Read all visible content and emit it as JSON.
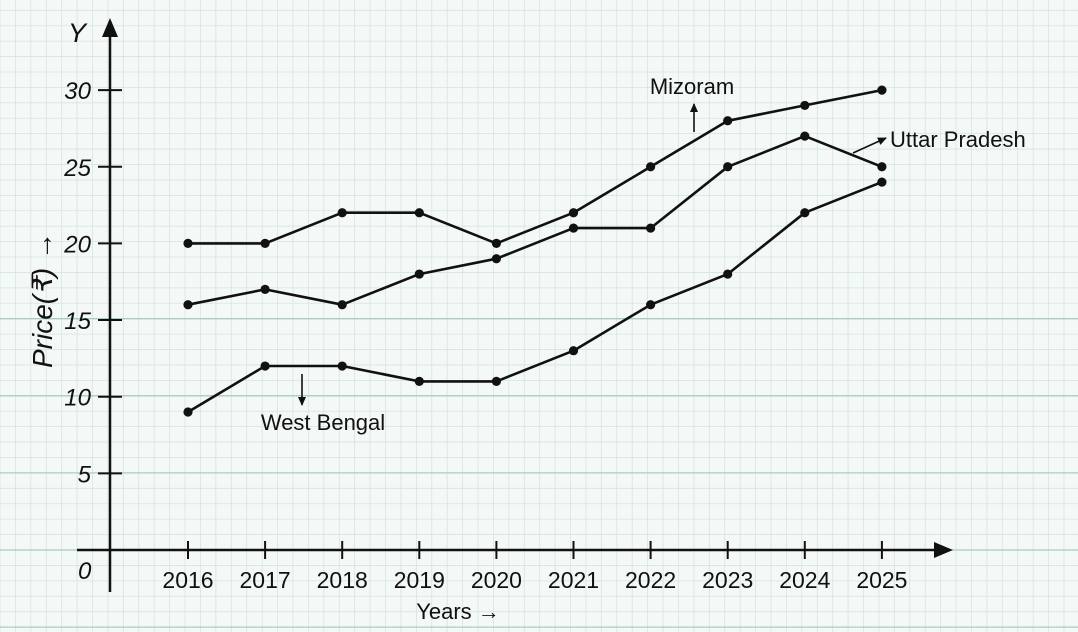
{
  "chart_data": {
    "type": "line",
    "x": [
      2016,
      2017,
      2018,
      2019,
      2020,
      2021,
      2022,
      2023,
      2024,
      2025
    ],
    "x_tick_labels": [
      "2016",
      "2017",
      "2018",
      "2019",
      "2020",
      "2021",
      "2022",
      "2023",
      "2024",
      "2025"
    ],
    "y_ticks": [
      5,
      10,
      15,
      20,
      25,
      30
    ],
    "y_tick_labels": [
      "5",
      "10",
      "15",
      "20",
      "25",
      "30"
    ],
    "origin_label": "0",
    "xlabel": "Years →",
    "ylabel": "Price(₹) →",
    "y_axis_letter": "Y",
    "xlim": [
      2015,
      2026
    ],
    "ylim": [
      0,
      33
    ],
    "grid": true,
    "series": [
      {
        "name": "Mizoram",
        "values": [
          20,
          20,
          22,
          22,
          20,
          22,
          25,
          28,
          29,
          30
        ]
      },
      {
        "name": "Uttar Pradesh",
        "values": [
          16,
          17,
          16,
          18,
          19,
          21,
          21,
          25,
          27,
          25
        ]
      },
      {
        "name": "West Bengal",
        "values": [
          9,
          12,
          12,
          11,
          11,
          13,
          16,
          18,
          22,
          24
        ]
      }
    ],
    "colors": {
      "line": "#111111",
      "grid_major": "#a9cbc4",
      "grid_minor": "#d3e6e1",
      "background": "#f4f8f7"
    }
  }
}
